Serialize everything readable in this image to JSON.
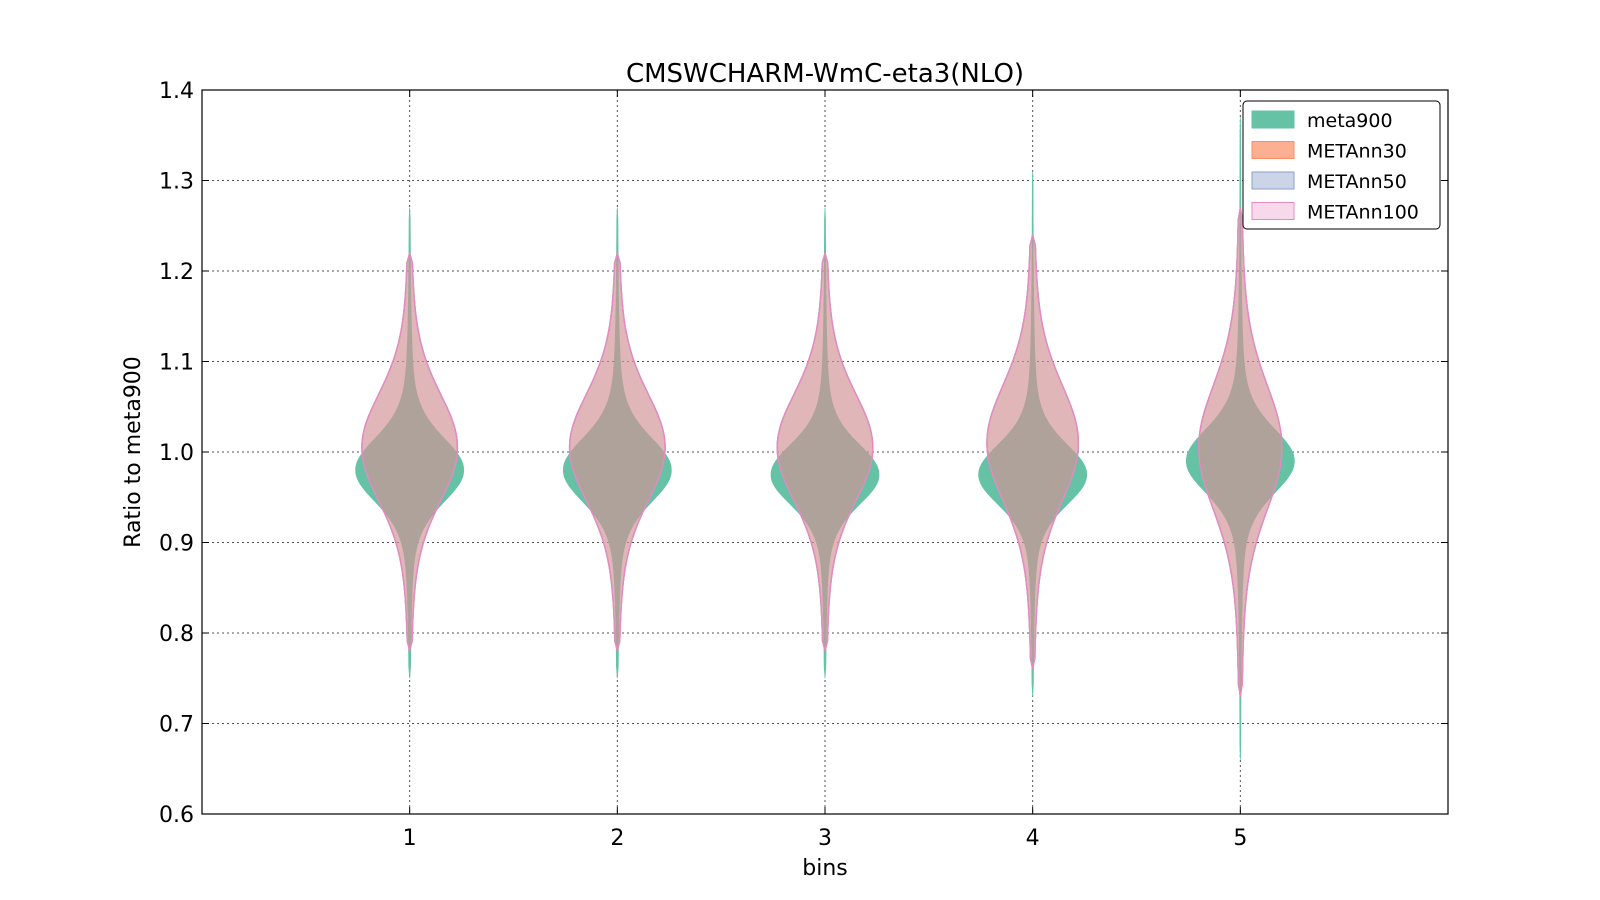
{
  "chart_data": {
    "type": "violin",
    "title": "CMSWCHARM-WmC-eta3(NLO)",
    "xlabel": "bins",
    "ylabel": "Ratio to meta900",
    "xlim": [
      0,
      6
    ],
    "ylim": [
      0.6,
      1.4
    ],
    "x_ticks": [
      "1",
      "2",
      "3",
      "4",
      "5"
    ],
    "y_ticks": [
      "0.6",
      "0.7",
      "0.8",
      "0.9",
      "1.0",
      "1.1",
      "1.2",
      "1.3",
      "1.4"
    ],
    "grid": true,
    "legend_position": "top-right",
    "series": [
      {
        "name": "meta900",
        "color": "#66c2a5",
        "fill_opacity": 1.0,
        "violins": [
          {
            "bin": 1,
            "min": 0.75,
            "max": 1.27,
            "center": 0.98,
            "spread": 0.035,
            "half_width": 0.26
          },
          {
            "bin": 2,
            "min": 0.75,
            "max": 1.27,
            "center": 0.98,
            "spread": 0.035,
            "half_width": 0.26
          },
          {
            "bin": 3,
            "min": 0.75,
            "max": 1.27,
            "center": 0.975,
            "spread": 0.033,
            "half_width": 0.26
          },
          {
            "bin": 4,
            "min": 0.73,
            "max": 1.31,
            "center": 0.975,
            "spread": 0.033,
            "half_width": 0.26
          },
          {
            "bin": 5,
            "min": 0.66,
            "max": 1.37,
            "center": 0.99,
            "spread": 0.035,
            "half_width": 0.26
          }
        ]
      },
      {
        "name": "METAnn30",
        "color": "#fc8d62",
        "fill_opacity": 0.5,
        "violins": [
          {
            "bin": 1,
            "min": 0.78,
            "max": 1.22,
            "center": 1.005,
            "spread": 0.06,
            "half_width": 0.23
          },
          {
            "bin": 2,
            "min": 0.78,
            "max": 1.22,
            "center": 1.005,
            "spread": 0.06,
            "half_width": 0.23
          },
          {
            "bin": 3,
            "min": 0.78,
            "max": 1.22,
            "center": 1.005,
            "spread": 0.06,
            "half_width": 0.23
          },
          {
            "bin": 4,
            "min": 0.76,
            "max": 1.24,
            "center": 1.01,
            "spread": 0.065,
            "half_width": 0.22
          },
          {
            "bin": 5,
            "min": 0.73,
            "max": 1.27,
            "center": 1.005,
            "spread": 0.07,
            "half_width": 0.2
          }
        ]
      },
      {
        "name": "METAnn50",
        "color": "#8da0cb",
        "fill_opacity": 0.25,
        "violins": [
          {
            "bin": 1,
            "min": 0.78,
            "max": 1.22,
            "center": 1.005,
            "spread": 0.06,
            "half_width": 0.23
          },
          {
            "bin": 2,
            "min": 0.78,
            "max": 1.22,
            "center": 1.005,
            "spread": 0.06,
            "half_width": 0.23
          },
          {
            "bin": 3,
            "min": 0.78,
            "max": 1.22,
            "center": 1.005,
            "spread": 0.06,
            "half_width": 0.23
          },
          {
            "bin": 4,
            "min": 0.76,
            "max": 1.24,
            "center": 1.01,
            "spread": 0.065,
            "half_width": 0.22
          },
          {
            "bin": 5,
            "min": 0.73,
            "max": 1.27,
            "center": 1.005,
            "spread": 0.07,
            "half_width": 0.2
          }
        ]
      },
      {
        "name": "METAnn100",
        "color": "#e78ac3",
        "fill_opacity": 0.12,
        "violins": [
          {
            "bin": 1,
            "min": 0.78,
            "max": 1.22,
            "center": 1.005,
            "spread": 0.06,
            "half_width": 0.23
          },
          {
            "bin": 2,
            "min": 0.78,
            "max": 1.22,
            "center": 1.005,
            "spread": 0.06,
            "half_width": 0.23
          },
          {
            "bin": 3,
            "min": 0.78,
            "max": 1.22,
            "center": 1.005,
            "spread": 0.06,
            "half_width": 0.23
          },
          {
            "bin": 4,
            "min": 0.76,
            "max": 1.24,
            "center": 1.01,
            "spread": 0.065,
            "half_width": 0.22
          },
          {
            "bin": 5,
            "min": 0.73,
            "max": 1.27,
            "center": 1.005,
            "spread": 0.07,
            "half_width": 0.2
          }
        ]
      }
    ]
  }
}
